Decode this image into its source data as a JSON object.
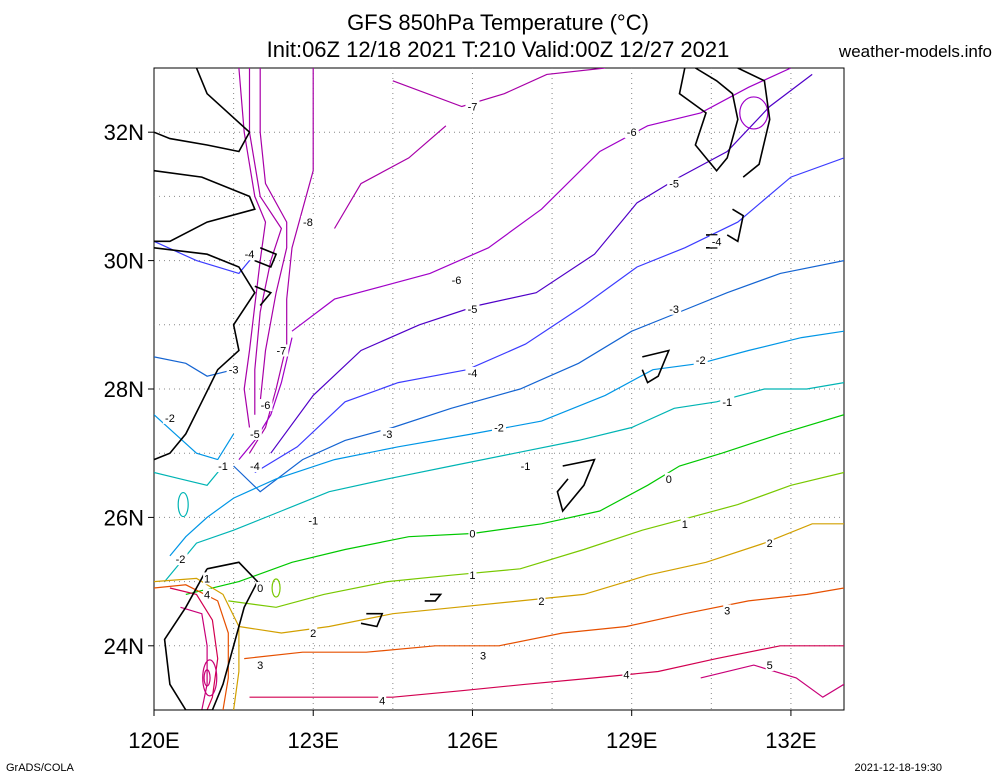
{
  "header": {
    "title_line1": "GFS 850hPa Temperature (°C)",
    "title_line2": "Init:06Z 12/18 2021 T:210 Valid:00Z 12/27 2021",
    "brand": "weather-models.info"
  },
  "footer": {
    "left": "GrADS/COLA",
    "right": "2021-12-18-19:30"
  },
  "map": {
    "lon_range": [
      120,
      133
    ],
    "lat_range": [
      23,
      33
    ],
    "lon_ticks": [
      "120E",
      "123E",
      "126E",
      "129E",
      "132E"
    ],
    "lat_ticks": [
      "32N",
      "30N",
      "28N",
      "26N",
      "24N"
    ],
    "contour_colors": {
      "-8": "#a800a8",
      "-7": "#a800a8",
      "-6": "#a000c8",
      "-5": "#5000c8",
      "-4": "#3c3cff",
      "-3": "#1464d2",
      "-2": "#0096e6",
      "-1": "#00b4b4",
      "0": "#00c800",
      "1": "#78c800",
      "2": "#d2a000",
      "3": "#e65000",
      "4": "#d20050",
      "5": "#c80078"
    },
    "contour_labels": [
      {
        "text": "-7",
        "lon": 126.0,
        "lat": 32.4
      },
      {
        "text": "-6",
        "lon": 129.0,
        "lat": 32.0
      },
      {
        "text": "-5",
        "lon": 129.8,
        "lat": 31.2
      },
      {
        "text": "-4",
        "lon": 130.6,
        "lat": 30.3
      },
      {
        "text": "-8",
        "lon": 122.9,
        "lat": 30.6
      },
      {
        "text": "-4",
        "lon": 121.8,
        "lat": 30.1
      },
      {
        "text": "-6",
        "lon": 125.7,
        "lat": 29.7
      },
      {
        "text": "-5",
        "lon": 126.0,
        "lat": 29.25
      },
      {
        "text": "-3",
        "lon": 129.8,
        "lat": 29.25
      },
      {
        "text": "-7",
        "lon": 122.4,
        "lat": 28.6
      },
      {
        "text": "-3",
        "lon": 121.5,
        "lat": 28.3
      },
      {
        "text": "-4",
        "lon": 126.0,
        "lat": 28.25
      },
      {
        "text": "-2",
        "lon": 130.3,
        "lat": 28.45
      },
      {
        "text": "-6",
        "lon": 122.1,
        "lat": 27.75
      },
      {
        "text": "-1",
        "lon": 130.8,
        "lat": 27.8
      },
      {
        "text": "-2",
        "lon": 120.3,
        "lat": 27.55
      },
      {
        "text": "-5",
        "lon": 121.9,
        "lat": 27.3
      },
      {
        "text": "-3",
        "lon": 124.4,
        "lat": 27.3
      },
      {
        "text": "-2",
        "lon": 126.5,
        "lat": 27.4
      },
      {
        "text": "-1",
        "lon": 121.3,
        "lat": 26.8
      },
      {
        "text": "-4",
        "lon": 121.9,
        "lat": 26.8
      },
      {
        "text": "-1",
        "lon": 127.0,
        "lat": 26.8
      },
      {
        "text": "0",
        "lon": 129.7,
        "lat": 26.6
      },
      {
        "text": "-1",
        "lon": 123.0,
        "lat": 25.95
      },
      {
        "text": "1",
        "lon": 130.0,
        "lat": 25.9
      },
      {
        "text": "0",
        "lon": 126.0,
        "lat": 25.75
      },
      {
        "text": "2",
        "lon": 131.6,
        "lat": 25.6
      },
      {
        "text": "-2",
        "lon": 120.5,
        "lat": 25.35
      },
      {
        "text": "1",
        "lon": 126.0,
        "lat": 25.1
      },
      {
        "text": "1",
        "lon": 121.0,
        "lat": 25.05
      },
      {
        "text": "0",
        "lon": 122.0,
        "lat": 24.9
      },
      {
        "text": "4",
        "lon": 121.0,
        "lat": 24.8
      },
      {
        "text": "2",
        "lon": 127.3,
        "lat": 24.7
      },
      {
        "text": "3",
        "lon": 130.8,
        "lat": 24.55
      },
      {
        "text": "2",
        "lon": 123.0,
        "lat": 24.2
      },
      {
        "text": "3",
        "lon": 126.2,
        "lat": 23.85
      },
      {
        "text": "3",
        "lon": 122.0,
        "lat": 23.7
      },
      {
        "text": "4",
        "lon": 128.9,
        "lat": 23.55
      },
      {
        "text": "5",
        "lon": 131.6,
        "lat": 23.7
      },
      {
        "text": "4",
        "lon": 124.3,
        "lat": 23.15
      }
    ]
  }
}
